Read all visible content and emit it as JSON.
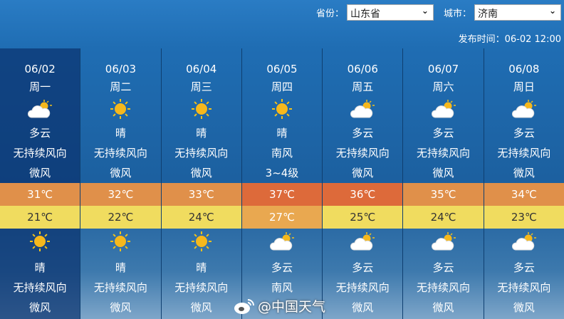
{
  "header": {
    "province_label": "省份：",
    "province_value": "山东省",
    "city_label": "城市：",
    "city_value": "济南",
    "publish_time": "发布时间：06-02 12:00"
  },
  "days": [
    {
      "date": "06/02",
      "weekday": "周一",
      "day_icon": "partly-cloudy-icon",
      "day_weather": "多云",
      "day_wind": "无持续风向",
      "day_level": "微风",
      "high": "31℃",
      "low": "21℃",
      "high_color": "#e0904a",
      "low_color": "#f0dc5f",
      "low_text": "#333",
      "night_icon": "sun-icon",
      "night_weather": "晴",
      "night_wind": "无持续风向",
      "night_level": "微风"
    },
    {
      "date": "06/03",
      "weekday": "周二",
      "day_icon": "sun-icon",
      "day_weather": "晴",
      "day_wind": "无持续风向",
      "day_level": "微风",
      "high": "32℃",
      "low": "22℃",
      "high_color": "#e0904a",
      "low_color": "#f0dc5f",
      "low_text": "#333",
      "night_icon": "sun-icon",
      "night_weather": "晴",
      "night_wind": "无持续风向",
      "night_level": "微风"
    },
    {
      "date": "06/04",
      "weekday": "周三",
      "day_icon": "sun-icon",
      "day_weather": "晴",
      "day_wind": "无持续风向",
      "day_level": "微风",
      "high": "33℃",
      "low": "24℃",
      "high_color": "#e0904a",
      "low_color": "#f0dc5f",
      "low_text": "#333",
      "night_icon": "sun-icon",
      "night_weather": "晴",
      "night_wind": "无持续风向",
      "night_level": "微风"
    },
    {
      "date": "06/05",
      "weekday": "周四",
      "day_icon": "sun-icon",
      "day_weather": "晴",
      "day_wind": "南风",
      "day_level": "3~4级",
      "high": "37℃",
      "low": "27℃",
      "high_color": "#dd6a3a",
      "low_color": "#e9a850",
      "low_text": "#fff",
      "night_icon": "partly-cloudy-icon",
      "night_weather": "多云",
      "night_wind": "南风",
      "night_level": ""
    },
    {
      "date": "06/06",
      "weekday": "周五",
      "day_icon": "partly-cloudy-icon",
      "day_weather": "多云",
      "day_wind": "无持续风向",
      "day_level": "微风",
      "high": "36℃",
      "low": "25℃",
      "high_color": "#dd6a3a",
      "low_color": "#f0dc5f",
      "low_text": "#333",
      "night_icon": "partly-cloudy-icon",
      "night_weather": "多云",
      "night_wind": "无持续风向",
      "night_level": "微风"
    },
    {
      "date": "06/07",
      "weekday": "周六",
      "day_icon": "partly-cloudy-icon",
      "day_weather": "多云",
      "day_wind": "无持续风向",
      "day_level": "微风",
      "high": "35℃",
      "low": "24℃",
      "high_color": "#e0904a",
      "low_color": "#f0dc5f",
      "low_text": "#333",
      "night_icon": "partly-cloudy-icon",
      "night_weather": "多云",
      "night_wind": "无持续风向",
      "night_level": "微风"
    },
    {
      "date": "06/08",
      "weekday": "周日",
      "day_icon": "partly-cloudy-icon",
      "day_weather": "多云",
      "day_wind": "无持续风向",
      "day_level": "微风",
      "high": "34℃",
      "low": "23℃",
      "high_color": "#e0904a",
      "low_color": "#f0dc5f",
      "low_text": "#333",
      "night_icon": "partly-cloudy-icon",
      "night_weather": "多云",
      "night_wind": "无持续风向",
      "night_level": "微风"
    }
  ],
  "watermark": "@中国天气"
}
